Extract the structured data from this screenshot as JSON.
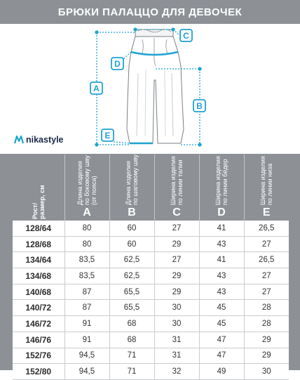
{
  "header": {
    "title": "БРЮКИ ПАЛАЦЦО ДЛЯ ДЕВОЧЕК"
  },
  "logo": {
    "text": "nikastyle",
    "icon": "nikastyle-logo-icon"
  },
  "diagram": {
    "markers": [
      "A",
      "B",
      "C",
      "D",
      "E"
    ],
    "accent": "#1fa3d0"
  },
  "table": {
    "size_header": "Рост/\nразмер, см",
    "columns": [
      {
        "label": "Длина изделия\nпо боковому шву\n(от пояса)",
        "letter": "A"
      },
      {
        "label": "Длина изделия\nпо шаговому шву",
        "letter": "B"
      },
      {
        "label": "Ширина изделия\nпо линии талии",
        "letter": "C"
      },
      {
        "label": "Ширина изделия\nпо линии бёдер",
        "letter": "D"
      },
      {
        "label": "Ширина изделия\nпо линии низа",
        "letter": "E"
      }
    ],
    "rows": [
      [
        "128/64",
        "80",
        "60",
        "27",
        "41",
        "26,5"
      ],
      [
        "128/68",
        "80",
        "60",
        "29",
        "43",
        "27"
      ],
      [
        "134/64",
        "83,5",
        "62,5",
        "27",
        "41",
        "26,5"
      ],
      [
        "134/68",
        "83,5",
        "62,5",
        "29",
        "43",
        "27"
      ],
      [
        "140/68",
        "87",
        "65,5",
        "29",
        "43",
        "27"
      ],
      [
        "140/72",
        "87",
        "65,5",
        "30",
        "45",
        "28"
      ],
      [
        "146/72",
        "91",
        "68",
        "30",
        "45",
        "28"
      ],
      [
        "146/76",
        "91",
        "68",
        "31",
        "47",
        "29"
      ],
      [
        "152/76",
        "94,5",
        "71",
        "31",
        "47",
        "29"
      ],
      [
        "152/80",
        "94,5",
        "71",
        "32",
        "49",
        "30"
      ]
    ]
  },
  "colors": {
    "band": "#8d9196",
    "accent": "#1fa3d0",
    "dark": "#1c2a4a"
  }
}
